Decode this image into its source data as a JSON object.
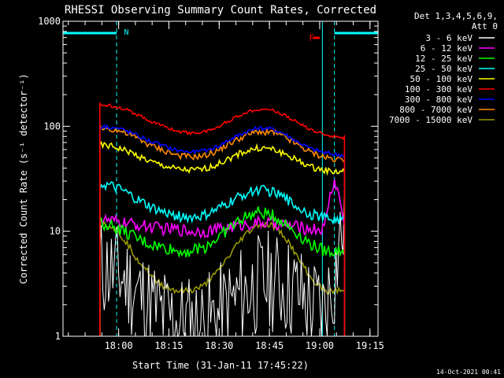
{
  "chart_data": {
    "type": "line",
    "title": "RHESSI Observing Summary Count Rates, Corrected",
    "xlabel": "Start Time (31-Jan-11 17:45:22)",
    "ylabel": "Corrected Count Rate (s⁻¹ detector⁻¹)",
    "yscale": "log",
    "x_unit": "minutes after 17:45:22",
    "xlim": [
      -2,
      92
    ],
    "ylim": [
      1,
      1000
    ],
    "x_ticks": [
      {
        "x": 14.6,
        "label": "18:00"
      },
      {
        "x": 29.6,
        "label": "18:15"
      },
      {
        "x": 44.6,
        "label": "18:30"
      },
      {
        "x": 59.6,
        "label": "18:45"
      },
      {
        "x": 74.6,
        "label": "19:00"
      },
      {
        "x": 89.6,
        "label": "19:15"
      }
    ],
    "y_ticks": [
      {
        "y": 1,
        "label": "1"
      },
      {
        "y": 10,
        "label": "10"
      },
      {
        "y": 100,
        "label": "100"
      },
      {
        "y": 1000,
        "label": "1000"
      }
    ],
    "legend": {
      "placement": "right",
      "header": [
        "Det 1,3,4,5,6,9,",
        "Att 0"
      ]
    },
    "annotations": {
      "night_label": "N",
      "flare_label": "F",
      "footer": "14-Oct-2021 00:41"
    },
    "night_bars": [
      [
        -2,
        14
      ],
      [
        79,
        92
      ]
    ],
    "series": [
      {
        "name": "3 - 6 keV",
        "color": "#ffffff",
        "x": [
          9,
          12,
          16,
          20,
          24,
          28,
          32,
          36,
          40,
          44,
          48,
          52,
          56,
          60,
          64,
          68,
          72,
          76,
          79,
          82
        ],
        "values": [
          4.5,
          4.3,
          3.6,
          2.6,
          2.0,
          1.6,
          1.4,
          1.3,
          1.3,
          1.5,
          2.0,
          2.6,
          3.1,
          3.4,
          3.1,
          2.6,
          2.0,
          1.8,
          3.5,
          12
        ]
      },
      {
        "name": "6 - 12 keV",
        "color": "#ff00ff",
        "x": [
          9,
          12,
          16,
          20,
          24,
          28,
          32,
          36,
          40,
          44,
          48,
          52,
          56,
          60,
          64,
          68,
          72,
          76,
          79,
          82
        ],
        "values": [
          13,
          12.5,
          12,
          11.5,
          11,
          10.5,
          10.5,
          10,
          10,
          10.5,
          11,
          11.5,
          12,
          12,
          11.5,
          11,
          10.5,
          10.5,
          30,
          11
        ]
      },
      {
        "name": "12 - 25 keV",
        "color": "#00ff00",
        "x": [
          9,
          12,
          16,
          20,
          24,
          28,
          32,
          36,
          40,
          44,
          48,
          52,
          56,
          60,
          64,
          68,
          72,
          76,
          79,
          82
        ],
        "values": [
          12,
          11.5,
          10,
          8.5,
          7.5,
          7,
          6.5,
          6.5,
          7,
          8.5,
          11,
          13.5,
          15,
          14.5,
          12,
          9.5,
          7.5,
          6.5,
          6.5,
          6.5
        ]
      },
      {
        "name": "25 - 50 keV",
        "color": "#00ffff",
        "x": [
          9,
          12,
          16,
          20,
          24,
          28,
          32,
          36,
          40,
          44,
          48,
          52,
          56,
          60,
          64,
          68,
          72,
          76,
          79,
          82
        ],
        "values": [
          28,
          27,
          24,
          20,
          17,
          15,
          14,
          13.5,
          14,
          16,
          19,
          22.5,
          25,
          24,
          21,
          17,
          14.5,
          13.5,
          13,
          13
        ]
      },
      {
        "name": "50 - 100 keV",
        "color": "#ffff00",
        "x": [
          9,
          12,
          16,
          20,
          24,
          28,
          32,
          36,
          40,
          44,
          48,
          52,
          56,
          60,
          64,
          68,
          72,
          76,
          79,
          82
        ],
        "values": [
          66,
          65,
          60,
          53,
          46,
          42,
          39,
          38,
          39,
          43,
          50,
          57,
          62,
          61,
          55,
          47,
          41,
          38,
          37,
          37
        ]
      },
      {
        "name": "100 - 300 keV",
        "color": "#ff0000",
        "x": [
          9,
          12,
          16,
          20,
          24,
          28,
          32,
          36,
          40,
          44,
          48,
          52,
          56,
          60,
          64,
          68,
          72,
          76,
          79,
          82
        ],
        "values": [
          160,
          158,
          148,
          130,
          112,
          100,
          90,
          86,
          88,
          97,
          115,
          133,
          146,
          144,
          128,
          108,
          92,
          84,
          80,
          78
        ]
      },
      {
        "name": "300 - 800 keV",
        "color": "#0000ff",
        "x": [
          9,
          12,
          16,
          20,
          24,
          28,
          32,
          36,
          40,
          44,
          48,
          52,
          56,
          60,
          64,
          68,
          72,
          76,
          79,
          82
        ],
        "values": [
          100,
          99,
          93,
          82,
          72,
          65,
          59,
          57,
          58,
          64,
          75,
          87,
          96,
          95,
          85,
          71,
          61,
          56,
          54,
          53
        ]
      },
      {
        "name": "800 - 7000 keV",
        "color": "#ff8c00",
        "x": [
          9,
          12,
          16,
          20,
          24,
          28,
          32,
          36,
          40,
          44,
          48,
          52,
          56,
          60,
          64,
          68,
          72,
          76,
          79,
          82
        ],
        "values": [
          97,
          95,
          88,
          77,
          66,
          59,
          53,
          51,
          52,
          58,
          69,
          80,
          89,
          88,
          79,
          66,
          56,
          51,
          49,
          48
        ]
      },
      {
        "name": "7000 - 15000 keV",
        "color": "#999900",
        "x": [
          9,
          12,
          16,
          20,
          24,
          28,
          32,
          36,
          40,
          44,
          48,
          52,
          56,
          60,
          64,
          68,
          72,
          76,
          79,
          82
        ],
        "values": [
          12,
          11.5,
          8.5,
          5.5,
          3.8,
          3.0,
          2.7,
          2.7,
          3.0,
          4.0,
          6.0,
          9.0,
          11.5,
          11.5,
          9.0,
          5.5,
          3.5,
          2.7,
          2.7,
          2.7
        ]
      }
    ]
  }
}
